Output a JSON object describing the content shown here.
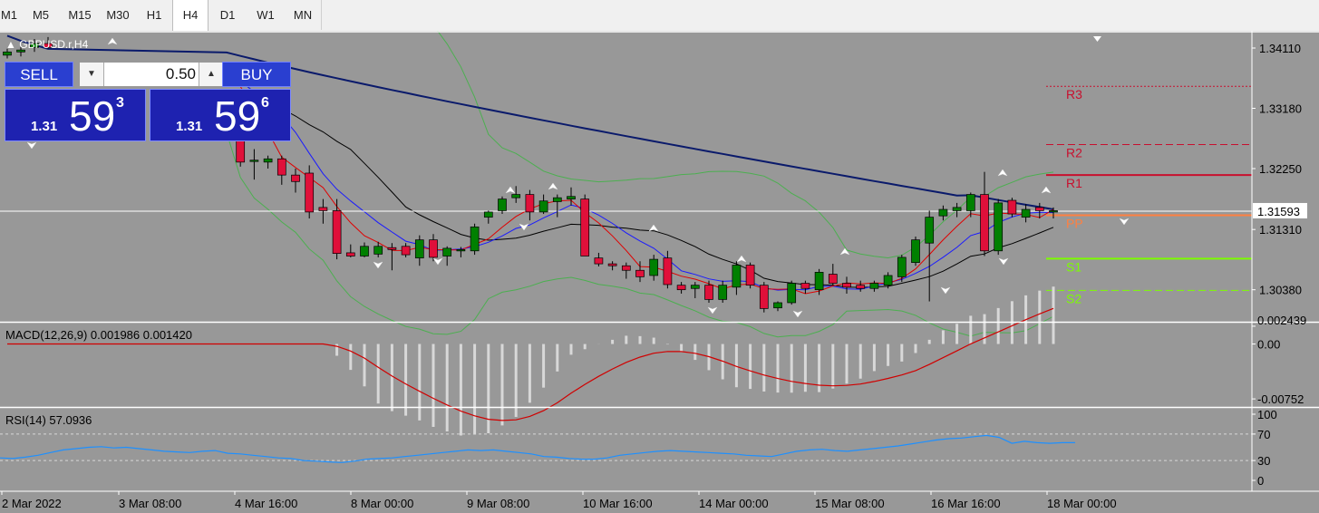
{
  "timeframes": [
    {
      "label": "M1",
      "selected": false
    },
    {
      "label": "M5",
      "selected": false
    },
    {
      "label": "M15",
      "selected": false
    },
    {
      "label": "M30",
      "selected": false
    },
    {
      "label": "H1",
      "selected": false
    },
    {
      "label": "H4",
      "selected": true
    },
    {
      "label": "D1",
      "selected": false
    },
    {
      "label": "W1",
      "selected": false
    },
    {
      "label": "MN",
      "selected": false
    }
  ],
  "symbol_label": "GBPUSD.r,H4",
  "trade_panel": {
    "sell_label": "SELL",
    "buy_label": "BUY",
    "lot_value": "0.50",
    "sell_price": {
      "big": "1.31",
      "main": "59",
      "sup": "3"
    },
    "buy_price": {
      "big": "1.31",
      "main": "59",
      "sup": "6"
    }
  },
  "colors": {
    "background": "#989898",
    "bull": "#008000",
    "bear": "#e0103a",
    "ma_slow": "#0a1a6b",
    "ma_fast_red": "#e00000",
    "ma_fast_blue": "#1a1aff",
    "ma_black": "#000000",
    "bands": "#4caf50",
    "pivot": "#ff8040",
    "resistance": "#c8102e",
    "support": "#7cfc00",
    "macd_signal": "#d00000",
    "macd_hist": "#d8d8d8",
    "rsi_line": "#1e90ff",
    "current_price_box": "#ffffff"
  },
  "chart_data": [
    {
      "type": "candlestick",
      "title": "GBPUSD.r,H4",
      "y_ticks": [
        "1.34110",
        "1.33180",
        "1.32250",
        "1.31310",
        "1.30380"
      ],
      "ylim": [
        1.299,
        1.3432
      ],
      "current_price": "1.31593",
      "x_ticks": [
        "2 Mar 2022",
        "3 Mar 08:00",
        "4 Mar 16:00",
        "8 Mar 00:00",
        "9 Mar 08:00",
        "10 Mar 16:00",
        "14 Mar 00:00",
        "15 Mar 08:00",
        "16 Mar 16:00",
        "18 Mar 00:00"
      ],
      "pivot_labels": [
        {
          "label": "R3",
          "value": 1.3352,
          "style": "dotted"
        },
        {
          "label": "R2",
          "value": 1.3262,
          "style": "dashed"
        },
        {
          "label": "R1",
          "value": 1.3215,
          "style": "solid"
        },
        {
          "label": "PP",
          "value": 1.3153,
          "style": "solid"
        },
        {
          "label": "S1",
          "value": 1.3086,
          "style": "solid"
        },
        {
          "label": "S2",
          "value": 1.3037,
          "style": "dashed"
        }
      ],
      "candles": [
        [
          1.34,
          1.341,
          1.3395,
          1.3405
        ],
        [
          1.3405,
          1.3415,
          1.3398,
          1.3408
        ],
        [
          1.3412,
          1.3425,
          1.3405,
          1.3418
        ],
        [
          1.3418,
          1.3428,
          1.341,
          1.3412
        ],
        [
          1.3295,
          1.3305,
          1.327,
          1.3285
        ],
        [
          1.3285,
          1.3292,
          1.3228,
          1.3235
        ],
        [
          1.3237,
          1.3255,
          1.3208,
          1.3238
        ],
        [
          1.3235,
          1.3245,
          1.3225,
          1.324
        ],
        [
          1.324,
          1.3245,
          1.32,
          1.3215
        ],
        [
          1.3215,
          1.3225,
          1.3188,
          1.3205
        ],
        [
          1.3218,
          1.323,
          1.3148,
          1.3158
        ],
        [
          1.3165,
          1.3178,
          1.314,
          1.316
        ],
        [
          1.316,
          1.3178,
          1.3085,
          1.3094
        ],
        [
          1.3095,
          1.3108,
          1.3088,
          1.309
        ],
        [
          1.309,
          1.3111,
          1.3088,
          1.3105
        ],
        [
          1.3093,
          1.3112,
          1.3088,
          1.3105
        ],
        [
          1.3103,
          1.311,
          1.3068,
          1.31
        ],
        [
          1.3105,
          1.311,
          1.3088,
          1.3092
        ],
        [
          1.3087,
          1.3122,
          1.3075,
          1.3115
        ],
        [
          1.3115,
          1.3124,
          1.3082,
          1.3088
        ],
        [
          1.309,
          1.3105,
          1.3075,
          1.3102
        ],
        [
          1.3098,
          1.3104,
          1.3088,
          1.31
        ],
        [
          1.3098,
          1.314,
          1.3092,
          1.3135
        ],
        [
          1.315,
          1.316,
          1.314,
          1.3158
        ],
        [
          1.316,
          1.3182,
          1.3155,
          1.3178
        ],
        [
          1.318,
          1.3198,
          1.3172,
          1.3185
        ],
        [
          1.3185,
          1.3192,
          1.3145,
          1.3158
        ],
        [
          1.3158,
          1.3185,
          1.3155,
          1.3175
        ],
        [
          1.3174,
          1.3185,
          1.315,
          1.318
        ],
        [
          1.3178,
          1.3196,
          1.3168,
          1.3182
        ],
        [
          1.3178,
          1.3185,
          1.309,
          1.309
        ],
        [
          1.3087,
          1.3095,
          1.3074,
          1.3078
        ],
        [
          1.3078,
          1.3082,
          1.3068,
          1.3075
        ],
        [
          1.3075,
          1.308,
          1.3055,
          1.3068
        ],
        [
          1.3068,
          1.3082,
          1.305,
          1.3058
        ],
        [
          1.306,
          1.3092,
          1.3052,
          1.3085
        ],
        [
          1.3087,
          1.3098,
          1.304,
          1.3046
        ],
        [
          1.3045,
          1.305,
          1.3032,
          1.3038
        ],
        [
          1.304,
          1.305,
          1.3025,
          1.3045
        ],
        [
          1.3045,
          1.3052,
          1.3018,
          1.3023
        ],
        [
          1.3023,
          1.3052,
          1.3018,
          1.3045
        ],
        [
          1.3042,
          1.3082,
          1.303,
          1.3076
        ],
        [
          1.3076,
          1.308,
          1.304,
          1.3045
        ],
        [
          1.3045,
          1.305,
          1.3003,
          1.3009
        ],
        [
          1.301,
          1.302,
          1.3005,
          1.3018
        ],
        [
          1.3018,
          1.3052,
          1.3015,
          1.3048
        ],
        [
          1.3048,
          1.3052,
          1.3032,
          1.304
        ],
        [
          1.3038,
          1.307,
          1.303,
          1.3065
        ],
        [
          1.3062,
          1.3078,
          1.3045,
          1.3048
        ],
        [
          1.3048,
          1.3058,
          1.3032,
          1.3042
        ],
        [
          1.3045,
          1.3052,
          1.3035,
          1.304
        ],
        [
          1.304,
          1.3052,
          1.3035,
          1.3048
        ],
        [
          1.3045,
          1.3065,
          1.304,
          1.306
        ],
        [
          1.3058,
          1.3092,
          1.305,
          1.3088
        ],
        [
          1.308,
          1.312,
          1.3075,
          1.3115
        ],
        [
          1.311,
          1.316,
          1.302,
          1.315
        ],
        [
          1.3152,
          1.3168,
          1.3145,
          1.3162
        ],
        [
          1.316,
          1.3172,
          1.315,
          1.3165
        ],
        [
          1.316,
          1.3188,
          1.315,
          1.3185
        ],
        [
          1.3185,
          1.322,
          1.309,
          1.3098
        ],
        [
          1.3098,
          1.3178,
          1.3092,
          1.3172
        ],
        [
          1.3176,
          1.318,
          1.315,
          1.3155
        ],
        [
          1.315,
          1.317,
          1.3142,
          1.3162
        ],
        [
          1.3165,
          1.3172,
          1.3148,
          1.316
        ],
        [
          1.3158,
          1.3165,
          1.3148,
          1.316
        ]
      ]
    },
    {
      "type": "bar",
      "title": "MACD(12,26,9) 0.001986 0.001420",
      "y_ticks": [
        "0.002439",
        "0.00",
        "-0.00752"
      ],
      "ylim": [
        -0.0085,
        0.0028
      ],
      "series_labels": [
        "0.001986",
        "0.001420"
      ]
    },
    {
      "type": "line",
      "title": "RSI(14) 57.0936",
      "y_ticks": [
        "100",
        "70",
        "30",
        "0"
      ],
      "ylim": [
        0,
        100
      ],
      "levels": [
        70,
        30
      ],
      "rsi_values": [
        34,
        33,
        35,
        38,
        42,
        46,
        48,
        50,
        51,
        49,
        50,
        48,
        46,
        44,
        43,
        42,
        44,
        45,
        41,
        40,
        38,
        36,
        34,
        33,
        30,
        29,
        28,
        27,
        29,
        32,
        33,
        34,
        36,
        38,
        40,
        42,
        44,
        46,
        45,
        46,
        44,
        42,
        40,
        36,
        35,
        33,
        32,
        32,
        34,
        38,
        40,
        42,
        44,
        45,
        44,
        43,
        42,
        41,
        40,
        38,
        37,
        36,
        40,
        44,
        46,
        47,
        45,
        44,
        46,
        48,
        50,
        52,
        55,
        58,
        61,
        63,
        64,
        66,
        68,
        65,
        56,
        59,
        57,
        56,
        57,
        57
      ]
    }
  ]
}
